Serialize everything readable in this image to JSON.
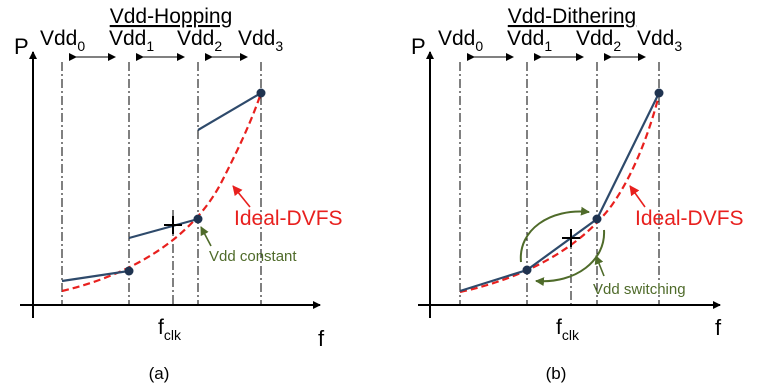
{
  "colors": {
    "ideal": "#e8201e",
    "curve": "#2e4a6b",
    "dot": "#1f3350",
    "annotation": "#4f6b2a",
    "text": "#000000"
  },
  "panels": [
    {
      "title": "Vdd-Hopping",
      "caption": "(a)",
      "y_axis": "P",
      "x_axis": "f",
      "clock": {
        "base": "f",
        "sub": "clk"
      },
      "vdd_labels": [
        {
          "base": "Vdd",
          "sub": "0"
        },
        {
          "base": "Vdd",
          "sub": "1"
        },
        {
          "base": "Vdd",
          "sub": "2"
        },
        {
          "base": "Vdd",
          "sub": "3"
        }
      ],
      "ideal_label": "Ideal-DVFS",
      "note": "Vdd constant"
    },
    {
      "title": "Vdd-Dithering",
      "caption": "(b)",
      "y_axis": "P",
      "x_axis": "f",
      "clock": {
        "base": "f",
        "sub": "clk"
      },
      "vdd_labels": [
        {
          "base": "Vdd",
          "sub": "0"
        },
        {
          "base": "Vdd",
          "sub": "1"
        },
        {
          "base": "Vdd",
          "sub": "2"
        },
        {
          "base": "Vdd",
          "sub": "3"
        }
      ],
      "ideal_label": "Ideal-DVFS",
      "note": "Vdd switching"
    }
  ]
}
